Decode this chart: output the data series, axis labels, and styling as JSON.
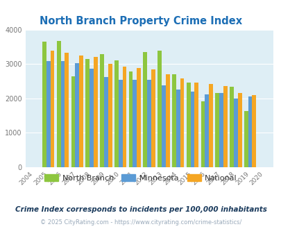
{
  "title": "North Branch Property Crime Index",
  "years": [
    2004,
    2005,
    2006,
    2007,
    2008,
    2009,
    2010,
    2011,
    2012,
    2013,
    2014,
    2015,
    2016,
    2017,
    2018,
    2019,
    2020
  ],
  "north_branch": [
    0,
    3660,
    3670,
    2640,
    3150,
    3300,
    3100,
    2780,
    3350,
    3390,
    2700,
    2470,
    1920,
    2150,
    2350,
    1640,
    0
  ],
  "minnesota": [
    0,
    3080,
    3080,
    3020,
    2870,
    2620,
    2550,
    2540,
    2540,
    2380,
    2260,
    2200,
    2120,
    2160,
    1990,
    2060,
    0
  ],
  "national": [
    0,
    3400,
    3330,
    3260,
    3200,
    3000,
    2930,
    2880,
    2850,
    2700,
    2580,
    2470,
    2430,
    2360,
    2150,
    2090,
    0
  ],
  "north_branch_color": "#8dc63f",
  "minnesota_color": "#5b9bd5",
  "national_color": "#f5a623",
  "bg_color": "#deeef5",
  "title_color": "#1c6eb5",
  "subtitle_color": "#1a3a5c",
  "footer_color": "#9aaabb",
  "subtitle": "Crime Index corresponds to incidents per 100,000 inhabitants",
  "footer": "© 2025 CityRating.com - https://www.cityrating.com/crime-statistics/",
  "ylim": [
    0,
    4000
  ],
  "yticks": [
    0,
    1000,
    2000,
    3000,
    4000
  ],
  "grid_color": "#c8dce8"
}
